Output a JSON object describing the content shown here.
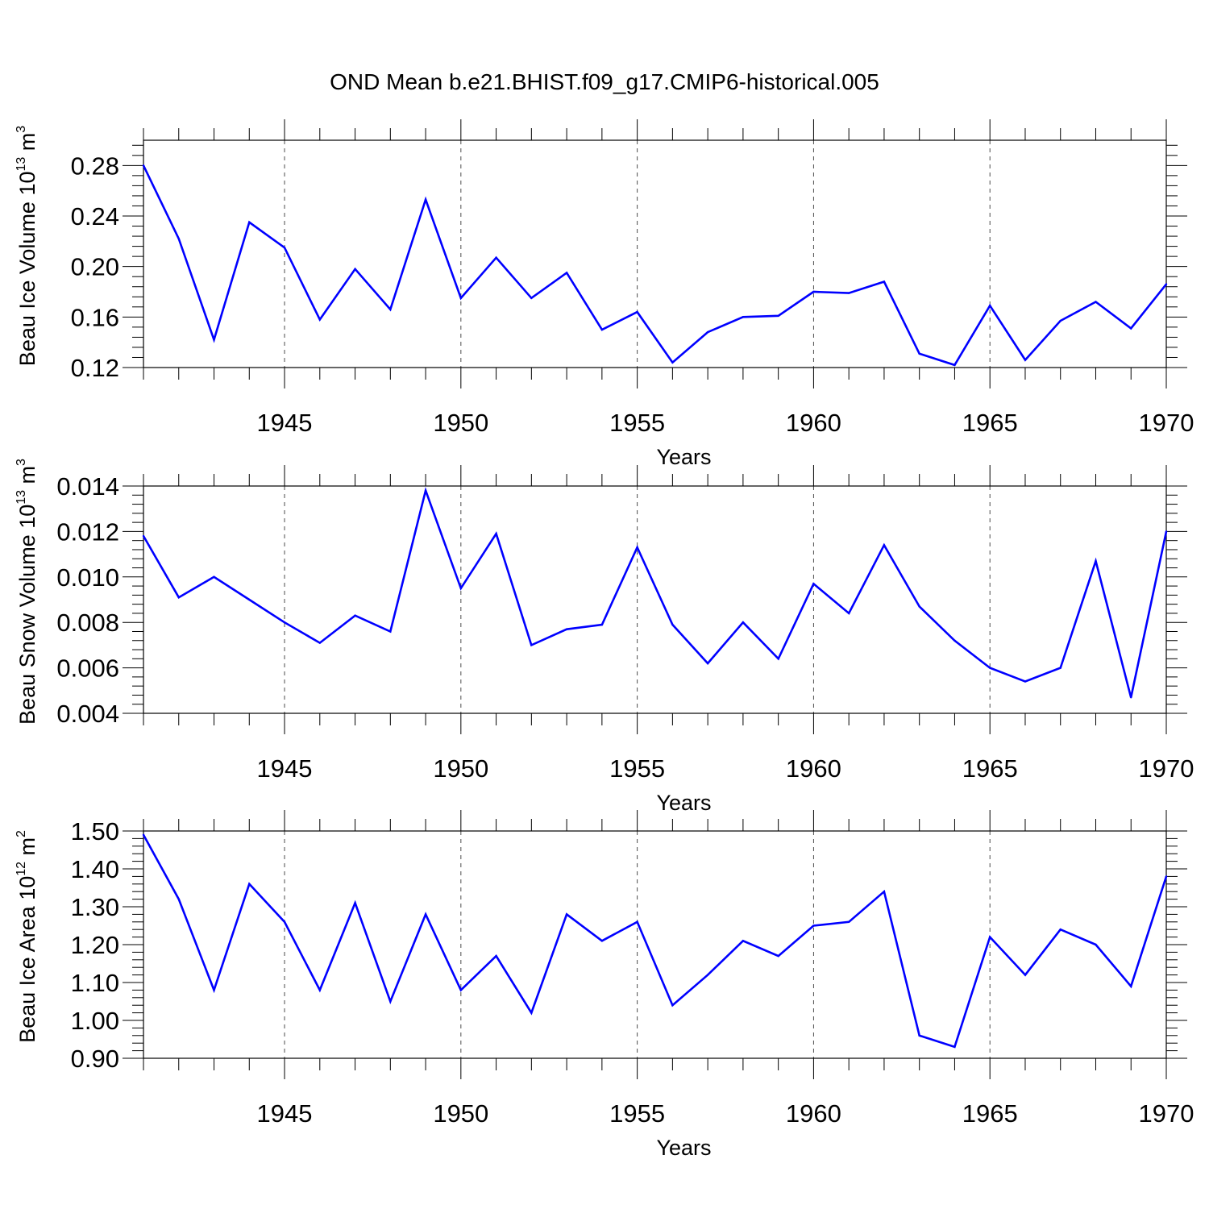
{
  "title": "OND Mean b.e21.BHIST.f09_g17.CMIP6-historical.005",
  "colors": {
    "series": "#0000ff",
    "axis": "#000000",
    "grid": "#000000"
  },
  "chart_data": [
    {
      "type": "line",
      "title": "",
      "xlabel": "Years",
      "ylabel": {
        "text": "Beau Ice Volume 10",
        "sup": "13",
        "unit": " m",
        "unit_sup": "3"
      },
      "xlim": [
        1941,
        1970
      ],
      "ylim": [
        0.12,
        0.3
      ],
      "yticks": [
        0.12,
        0.16,
        0.2,
        0.24,
        0.28
      ],
      "ytick_labels": [
        "0.12",
        "0.16",
        "0.20",
        "0.24",
        "0.28"
      ],
      "xticks": [
        1945,
        1950,
        1955,
        1960,
        1965,
        1970
      ],
      "xtick_labels": [
        "1945",
        "1950",
        "1955",
        "1960",
        "1965",
        "1970"
      ],
      "grid": "vertical dashed at major x ticks",
      "x": [
        1941,
        1942,
        1943,
        1944,
        1945,
        1946,
        1947,
        1948,
        1949,
        1950,
        1951,
        1952,
        1953,
        1954,
        1955,
        1956,
        1957,
        1958,
        1959,
        1960,
        1961,
        1962,
        1963,
        1964,
        1965,
        1966,
        1967,
        1968,
        1969,
        1970
      ],
      "values": [
        0.28,
        0.222,
        0.142,
        0.235,
        0.215,
        0.158,
        0.198,
        0.166,
        0.253,
        0.175,
        0.207,
        0.175,
        0.195,
        0.15,
        0.164,
        0.124,
        0.148,
        0.16,
        0.161,
        0.18,
        0.179,
        0.188,
        0.131,
        0.122,
        0.169,
        0.126,
        0.157,
        0.172,
        0.151,
        0.186
      ]
    },
    {
      "type": "line",
      "title": "",
      "xlabel": "Years",
      "ylabel": {
        "text": "Beau Snow Volume 10",
        "sup": "13",
        "unit": " m",
        "unit_sup": "3"
      },
      "xlim": [
        1941,
        1970
      ],
      "ylim": [
        0.004,
        0.014
      ],
      "yticks": [
        0.004,
        0.006,
        0.008,
        0.01,
        0.012,
        0.014
      ],
      "ytick_labels": [
        "0.004",
        "0.006",
        "0.008",
        "0.010",
        "0.012",
        "0.014"
      ],
      "xticks": [
        1945,
        1950,
        1955,
        1960,
        1965,
        1970
      ],
      "xtick_labels": [
        "1945",
        "1950",
        "1955",
        "1960",
        "1965",
        "1970"
      ],
      "grid": "vertical dashed at major x ticks",
      "x": [
        1941,
        1942,
        1943,
        1944,
        1945,
        1946,
        1947,
        1948,
        1949,
        1950,
        1951,
        1952,
        1953,
        1954,
        1955,
        1956,
        1957,
        1958,
        1959,
        1960,
        1961,
        1962,
        1963,
        1964,
        1965,
        1966,
        1967,
        1968,
        1969,
        1970
      ],
      "values": [
        0.0118,
        0.0091,
        0.01,
        0.009,
        0.008,
        0.0071,
        0.0083,
        0.0076,
        0.0138,
        0.0095,
        0.0119,
        0.007,
        0.0077,
        0.0079,
        0.0113,
        0.0079,
        0.0062,
        0.008,
        0.0064,
        0.0097,
        0.0084,
        0.0114,
        0.0087,
        0.0072,
        0.006,
        0.0054,
        0.006,
        0.0107,
        0.0047,
        0.012
      ]
    },
    {
      "type": "line",
      "title": "",
      "xlabel": "Years",
      "ylabel": {
        "text": "Beau Ice Area 10",
        "sup": "12",
        "unit": " m",
        "unit_sup": "2"
      },
      "xlim": [
        1941,
        1970
      ],
      "ylim": [
        0.9,
        1.5
      ],
      "yticks": [
        0.9,
        1.0,
        1.1,
        1.2,
        1.3,
        1.4,
        1.5
      ],
      "ytick_labels": [
        "0.90",
        "1.00",
        "1.10",
        "1.20",
        "1.30",
        "1.40",
        "1.50"
      ],
      "xticks": [
        1945,
        1950,
        1955,
        1960,
        1965,
        1970
      ],
      "xtick_labels": [
        "1945",
        "1950",
        "1955",
        "1960",
        "1965",
        "1970"
      ],
      "grid": "vertical dashed at major x ticks",
      "x": [
        1941,
        1942,
        1943,
        1944,
        1945,
        1946,
        1947,
        1948,
        1949,
        1950,
        1951,
        1952,
        1953,
        1954,
        1955,
        1956,
        1957,
        1958,
        1959,
        1960,
        1961,
        1962,
        1963,
        1964,
        1965,
        1966,
        1967,
        1968,
        1969,
        1970
      ],
      "values": [
        1.49,
        1.32,
        1.08,
        1.36,
        1.26,
        1.08,
        1.31,
        1.05,
        1.28,
        1.08,
        1.17,
        1.02,
        1.28,
        1.21,
        1.26,
        1.04,
        1.12,
        1.21,
        1.17,
        1.25,
        1.26,
        1.34,
        0.96,
        0.93,
        1.22,
        1.12,
        1.24,
        1.2,
        1.09,
        1.38
      ]
    }
  ]
}
